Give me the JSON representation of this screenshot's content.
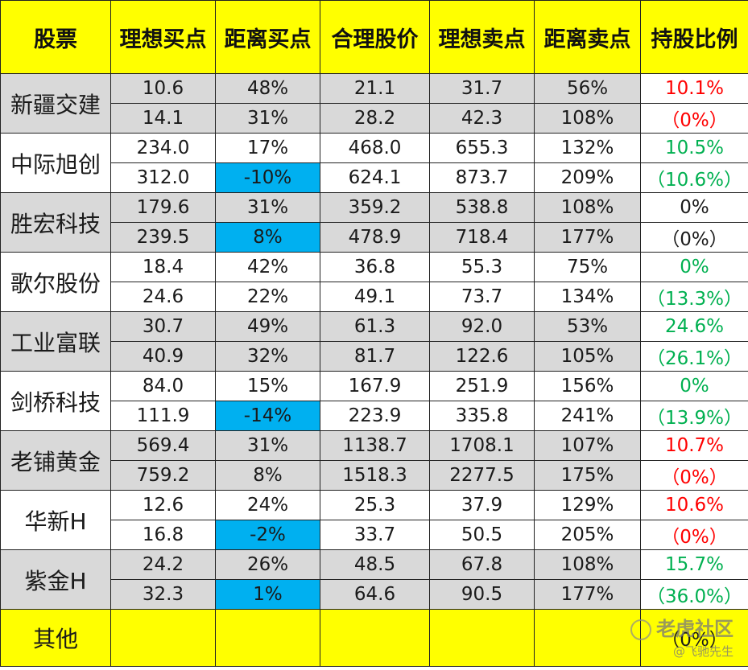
{
  "headers": [
    "股票",
    "理想买点",
    "距离买点",
    "合理股价",
    "理想卖点",
    "距离卖点",
    "持股比例"
  ],
  "stocks": [
    {
      "name": "新疆交建",
      "band": "grey",
      "rows": [
        {
          "buy": "10.6",
          "buy_dist": "48%",
          "fair": "21.1",
          "sell": "31.7",
          "sell_dist": "56%",
          "hold": "10.1%",
          "hold_color": "red",
          "highlight": false
        },
        {
          "buy": "14.1",
          "buy_dist": "31%",
          "fair": "28.2",
          "sell": "42.3",
          "sell_dist": "108%",
          "hold": "（0%）",
          "hold_color": "red",
          "highlight": false
        }
      ]
    },
    {
      "name": "中际旭创",
      "band": "white",
      "rows": [
        {
          "buy": "234.0",
          "buy_dist": "17%",
          "fair": "468.0",
          "sell": "655.3",
          "sell_dist": "132%",
          "hold": "10.5%",
          "hold_color": "green",
          "highlight": false
        },
        {
          "buy": "312.0",
          "buy_dist": "-10%",
          "fair": "624.1",
          "sell": "873.7",
          "sell_dist": "209%",
          "hold": "（10.6%）",
          "hold_color": "green",
          "highlight": true
        }
      ]
    },
    {
      "name": "胜宏科技",
      "band": "grey",
      "rows": [
        {
          "buy": "179.6",
          "buy_dist": "31%",
          "fair": "359.2",
          "sell": "538.8",
          "sell_dist": "108%",
          "hold": "0%",
          "hold_color": "black",
          "highlight": false
        },
        {
          "buy": "239.5",
          "buy_dist": "8%",
          "fair": "478.9",
          "sell": "718.4",
          "sell_dist": "177%",
          "hold": "（0%）",
          "hold_color": "black",
          "highlight": true
        }
      ]
    },
    {
      "name": "歌尔股份",
      "band": "white",
      "rows": [
        {
          "buy": "18.4",
          "buy_dist": "42%",
          "fair": "36.8",
          "sell": "55.3",
          "sell_dist": "75%",
          "hold": "0%",
          "hold_color": "green",
          "highlight": false
        },
        {
          "buy": "24.6",
          "buy_dist": "22%",
          "fair": "49.1",
          "sell": "73.7",
          "sell_dist": "134%",
          "hold": "（13.3%）",
          "hold_color": "green",
          "highlight": false
        }
      ]
    },
    {
      "name": "工业富联",
      "band": "grey",
      "rows": [
        {
          "buy": "30.7",
          "buy_dist": "49%",
          "fair": "61.3",
          "sell": "92.0",
          "sell_dist": "53%",
          "hold": "24.6%",
          "hold_color": "green",
          "highlight": false
        },
        {
          "buy": "40.9",
          "buy_dist": "32%",
          "fair": "81.7",
          "sell": "122.6",
          "sell_dist": "105%",
          "hold": "（26.1%）",
          "hold_color": "green",
          "highlight": false
        }
      ]
    },
    {
      "name": "剑桥科技",
      "band": "white",
      "rows": [
        {
          "buy": "84.0",
          "buy_dist": "15%",
          "fair": "167.9",
          "sell": "251.9",
          "sell_dist": "156%",
          "hold": "0%",
          "hold_color": "green",
          "highlight": false
        },
        {
          "buy": "111.9",
          "buy_dist": "-14%",
          "fair": "223.9",
          "sell": "335.8",
          "sell_dist": "241%",
          "hold": "（13.9%）",
          "hold_color": "green",
          "highlight": true
        }
      ]
    },
    {
      "name": "老铺黄金",
      "band": "grey",
      "rows": [
        {
          "buy": "569.4",
          "buy_dist": "31%",
          "fair": "1138.7",
          "sell": "1708.1",
          "sell_dist": "107%",
          "hold": "10.7%",
          "hold_color": "red",
          "highlight": false
        },
        {
          "buy": "759.2",
          "buy_dist": "8%",
          "fair": "1518.3",
          "sell": "2277.5",
          "sell_dist": "175%",
          "hold": "（0%）",
          "hold_color": "red",
          "highlight": false
        }
      ]
    },
    {
      "name": "华新H",
      "band": "white",
      "rows": [
        {
          "buy": "12.6",
          "buy_dist": "24%",
          "fair": "25.3",
          "sell": "37.9",
          "sell_dist": "129%",
          "hold": "10.6%",
          "hold_color": "red",
          "highlight": false
        },
        {
          "buy": "16.8",
          "buy_dist": "-2%",
          "fair": "33.7",
          "sell": "50.5",
          "sell_dist": "205%",
          "hold": "（0%）",
          "hold_color": "red",
          "highlight": true
        }
      ]
    },
    {
      "name": "紫金H",
      "band": "grey",
      "rows": [
        {
          "buy": "24.2",
          "buy_dist": "26%",
          "fair": "48.5",
          "sell": "67.8",
          "sell_dist": "108%",
          "hold": "15.7%",
          "hold_color": "green",
          "highlight": false
        },
        {
          "buy": "32.3",
          "buy_dist": "1%",
          "fair": "64.6",
          "sell": "90.5",
          "sell_dist": "177%",
          "hold": "（36.0%）",
          "hold_color": "green",
          "highlight": true
        }
      ]
    }
  ],
  "other": {
    "name": "其他",
    "hold": "（0%）"
  },
  "watermark": {
    "line1": "老虎社区",
    "line2": "@飞驰先生"
  },
  "colors": {
    "header_bg": "#ffff00",
    "grey_band": "#d9d9d9",
    "highlight": "#00b0f0",
    "red": "#ff0000",
    "green": "#00b050"
  }
}
